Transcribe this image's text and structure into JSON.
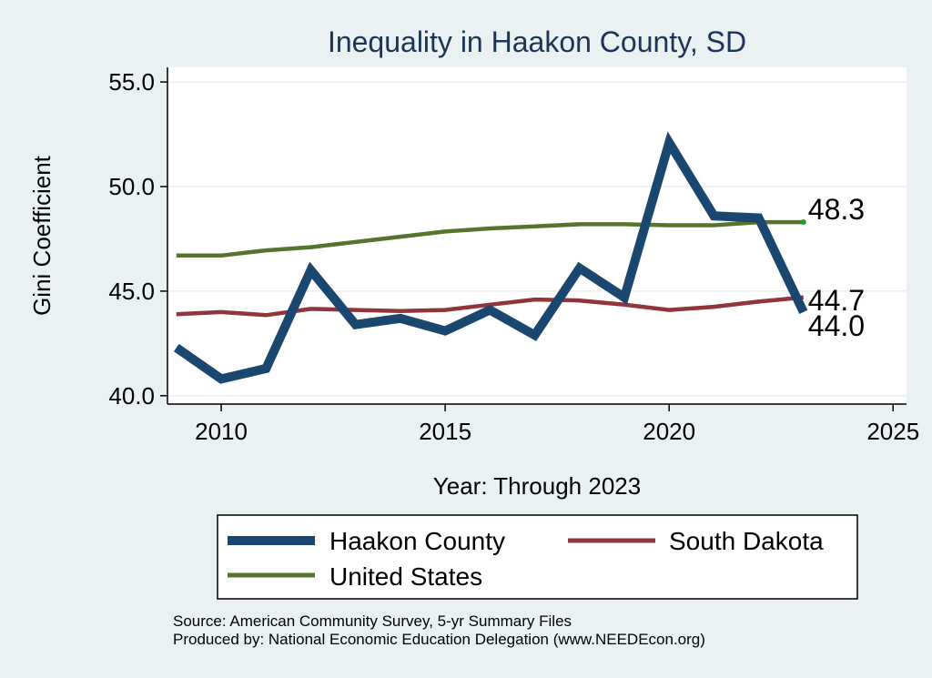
{
  "chart_data": {
    "type": "line",
    "title": "Inequality in Haakon County, SD",
    "xlabel": "Year: Through 2023",
    "ylabel": "Gini Coefficient",
    "xlim": [
      2008.8,
      2025.3
    ],
    "ylim": [
      39.6,
      55.7
    ],
    "x_ticks": [
      2010,
      2015,
      2020,
      2025
    ],
    "y_ticks": [
      40.0,
      45.0,
      50.0,
      55.0
    ],
    "y_tick_labels": [
      "40.0",
      "45.0",
      "50.0",
      "55.0"
    ],
    "grid": true,
    "legend_position": "bottom",
    "x": [
      2009,
      2010,
      2011,
      2012,
      2013,
      2014,
      2015,
      2016,
      2017,
      2018,
      2019,
      2020,
      2021,
      2022,
      2023
    ],
    "series": [
      {
        "name": "Haakon County",
        "color": "#1a476f",
        "values": [
          42.3,
          40.8,
          41.3,
          46.0,
          43.4,
          43.7,
          43.1,
          44.1,
          42.9,
          46.1,
          44.7,
          52.1,
          48.6,
          48.5,
          44.0
        ],
        "end_label": "44.0"
      },
      {
        "name": "South Dakota",
        "color": "#90353b",
        "values": [
          43.9,
          44.0,
          43.85,
          44.15,
          44.1,
          44.05,
          44.1,
          44.35,
          44.6,
          44.55,
          44.35,
          44.1,
          44.25,
          44.5,
          44.7
        ],
        "end_label": "44.7"
      },
      {
        "name": "United States",
        "color": "#55752f",
        "values": [
          46.7,
          46.7,
          46.95,
          47.1,
          47.35,
          47.6,
          47.85,
          48.0,
          48.1,
          48.2,
          48.2,
          48.15,
          48.15,
          48.3,
          48.3
        ],
        "end_label": "48.3"
      }
    ],
    "footer": {
      "source": "Source: American Community Survey, 5-yr Summary Files",
      "produced_by": "Produced by: National Economic Education Delegation (www.NEEDEcon.org)"
    }
  }
}
